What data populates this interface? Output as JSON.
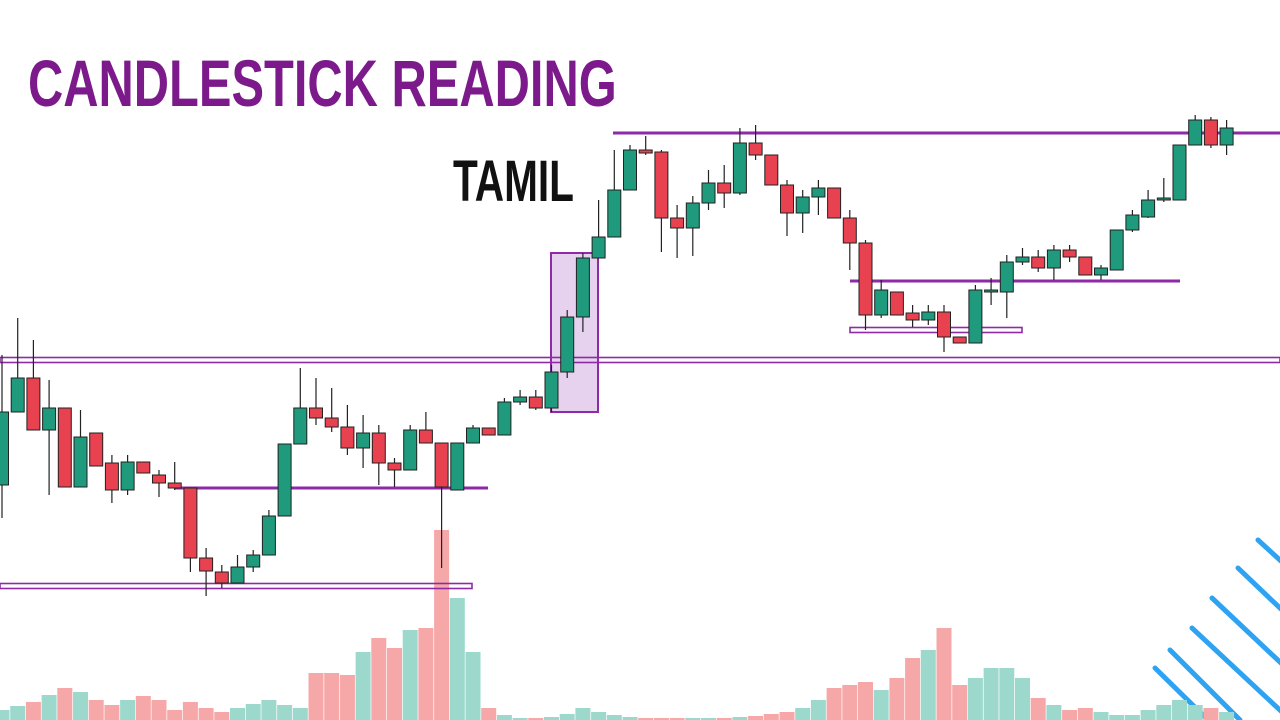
{
  "chart_data": {
    "type": "candlestick",
    "title": "CANDLESTICK READING",
    "subtitle": "TAMIL",
    "ylim": [
      0,
      720
    ],
    "up_color": "#1f9a7c",
    "down_color": "#e8414f",
    "volume_up_color": "#9dd8cd",
    "volume_down_color": "#f6a8a8",
    "level_color": "#8e2aa6",
    "highlight_color": "#e6d1ee",
    "open": [
      235,
      308,
      342,
      290,
      312,
      233,
      287,
      257,
      230,
      258,
      245,
      237,
      232,
      162,
      148,
      137,
      153,
      165,
      204,
      276,
      312,
      302,
      293,
      272,
      287,
      257,
      250,
      290,
      277,
      230,
      277,
      292,
      285,
      318,
      323,
      312,
      348,
      403,
      462,
      483,
      530,
      570,
      568,
      502,
      492,
      517,
      537,
      527,
      577,
      565,
      535,
      507,
      523,
      532,
      502,
      477,
      405,
      428,
      407,
      400,
      408,
      383,
      377,
      428,
      428,
      458,
      463,
      452,
      470,
      463,
      445,
      450,
      490,
      503,
      520,
      520,
      575,
      600,
      575
    ],
    "high": [
      365,
      402,
      380,
      340,
      312,
      310,
      287,
      265,
      265,
      258,
      250,
      258,
      232,
      172,
      155,
      165,
      170,
      210,
      276,
      352,
      342,
      332,
      315,
      305,
      295,
      262,
      295,
      308,
      277,
      277,
      295,
      292,
      322,
      330,
      330,
      355,
      410,
      467,
      520,
      570,
      575,
      584,
      570,
      515,
      524,
      550,
      555,
      592,
      595,
      565,
      540,
      530,
      540,
      532,
      510,
      480,
      440,
      428,
      415,
      415,
      415,
      383,
      435,
      442,
      465,
      472,
      470,
      475,
      475,
      463,
      455,
      490,
      510,
      530,
      542,
      575,
      605,
      603,
      600
    ],
    "low": [
      202,
      308,
      290,
      225,
      233,
      233,
      254,
      217,
      225,
      247,
      223,
      230,
      148,
      124,
      132,
      137,
      148,
      165,
      204,
      276,
      295,
      288,
      265,
      252,
      235,
      233,
      250,
      277,
      152,
      230,
      277,
      285,
      285,
      315,
      310,
      308,
      342,
      388,
      462,
      483,
      530,
      565,
      468,
      462,
      464,
      510,
      512,
      525,
      560,
      535,
      484,
      487,
      505,
      502,
      450,
      390,
      402,
      405,
      393,
      395,
      368,
      377,
      377,
      415,
      402,
      455,
      448,
      440,
      458,
      445,
      440,
      450,
      488,
      502,
      518,
      520,
      575,
      572,
      565
    ],
    "close": [
      308,
      342,
      290,
      312,
      233,
      283,
      254,
      230,
      258,
      247,
      237,
      232,
      162,
      149,
      137,
      153,
      165,
      204,
      276,
      312,
      302,
      293,
      272,
      287,
      257,
      250,
      290,
      277,
      233,
      277,
      292,
      285,
      318,
      323,
      312,
      348,
      403,
      462,
      483,
      530,
      570,
      567,
      502,
      492,
      517,
      537,
      527,
      577,
      565,
      535,
      507,
      523,
      532,
      502,
      477,
      405,
      430,
      405,
      400,
      408,
      383,
      377,
      430,
      430,
      458,
      463,
      452,
      470,
      463,
      445,
      452,
      490,
      505,
      520,
      522,
      575,
      600,
      575,
      592
    ],
    "volume": [
      10,
      14,
      18,
      25,
      32,
      28,
      20,
      15,
      20,
      24,
      20,
      10,
      18,
      12,
      8,
      12,
      16,
      20,
      15,
      12,
      47,
      47,
      45,
      68,
      82,
      72,
      90,
      92,
      190,
      122,
      68,
      12,
      5,
      2,
      2,
      3,
      6,
      12,
      8,
      5,
      3,
      2,
      2,
      2,
      2,
      2,
      2,
      3,
      4,
      6,
      8,
      12,
      20,
      32,
      35,
      38,
      30,
      42,
      62,
      70,
      92,
      35,
      42,
      52,
      52,
      42,
      22,
      15,
      10,
      12,
      8,
      5,
      5,
      10,
      15,
      20,
      15,
      12,
      8
    ],
    "levels": [
      587,
      360,
      232,
      134,
      439,
      390
    ],
    "highlight": [
      308,
      467
    ]
  }
}
